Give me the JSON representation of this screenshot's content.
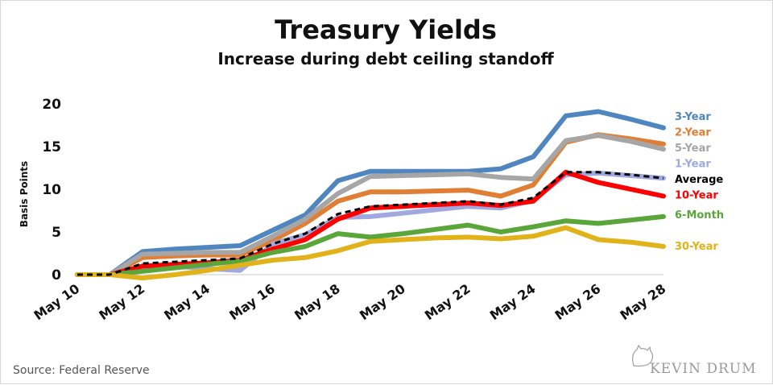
{
  "chart_data": {
    "type": "line",
    "title": "Treasury Yields",
    "subtitle": "Increase during debt ceiling standoff",
    "ylabel": "Basis Points",
    "xlabel": "",
    "ylim": [
      0,
      20
    ],
    "yticks": [
      0,
      5,
      10,
      15,
      20
    ],
    "x": [
      10,
      11,
      12,
      13,
      14,
      15,
      16,
      17,
      18,
      19,
      20,
      21,
      22,
      23,
      24,
      25,
      26,
      27,
      28
    ],
    "xtick_values": [
      10,
      12,
      14,
      16,
      18,
      20,
      22,
      24,
      26,
      28
    ],
    "xtick_labels": [
      "May 10",
      "May 12",
      "May 14",
      "May 16",
      "May 18",
      "May 20",
      "May 22",
      "May 24",
      "May 26",
      "May 28"
    ],
    "grid": false,
    "legend": "right, labels at line ends",
    "series": [
      {
        "name": "3-Year",
        "color": "#4f86c0",
        "dash": false,
        "values": [
          0,
          0,
          2.7,
          3.0,
          3.2,
          3.4,
          5.2,
          7.0,
          11.0,
          12.1,
          12.1,
          12.1,
          12.1,
          12.4,
          13.8,
          18.6,
          19.1,
          18.2,
          17.2
        ]
      },
      {
        "name": "2-Year",
        "color": "#e07f34",
        "dash": false,
        "values": [
          0,
          0,
          2.0,
          2.2,
          2.3,
          2.3,
          4.0,
          6.0,
          8.6,
          9.7,
          9.7,
          9.8,
          9.9,
          9.2,
          10.5,
          15.5,
          16.4,
          15.9,
          15.3
        ]
      },
      {
        "name": "5-Year",
        "color": "#a6a6a6",
        "dash": false,
        "values": [
          0,
          0,
          2.4,
          2.5,
          2.6,
          2.6,
          4.5,
          6.5,
          9.5,
          11.5,
          11.6,
          11.7,
          11.8,
          11.4,
          11.2,
          15.7,
          16.3,
          15.6,
          14.7
        ]
      },
      {
        "name": "1-Year",
        "color": "#a0a8e0",
        "dash": false,
        "values": [
          0,
          0,
          0.9,
          1.0,
          0.7,
          0.5,
          3.6,
          4.7,
          6.7,
          6.8,
          7.2,
          7.6,
          8.0,
          7.8,
          8.7,
          11.7,
          11.9,
          11.6,
          11.3
        ]
      },
      {
        "name": "10-Year",
        "color": "#ff0000",
        "dash": false,
        "values": [
          0,
          0,
          1.0,
          1.2,
          1.4,
          1.7,
          3.0,
          4.1,
          6.5,
          7.8,
          8.0,
          8.2,
          8.4,
          8.1,
          8.6,
          12.0,
          10.8,
          10.0,
          9.2
        ]
      },
      {
        "name": "6-Month",
        "color": "#5aa63a",
        "dash": false,
        "values": [
          0,
          0,
          0.4,
          0.8,
          1.2,
          1.6,
          2.6,
          3.3,
          4.8,
          4.4,
          4.8,
          5.3,
          5.8,
          5.0,
          5.6,
          6.3,
          6.0,
          6.4,
          6.8
        ]
      },
      {
        "name": "30-Year",
        "color": "#e2b21a",
        "dash": false,
        "values": [
          0,
          0,
          -0.4,
          0,
          0.5,
          1.1,
          1.7,
          2.0,
          2.8,
          3.9,
          4.1,
          4.3,
          4.4,
          4.2,
          4.5,
          5.5,
          4.1,
          3.8,
          3.3
        ]
      },
      {
        "name": "Average",
        "color": "#000000",
        "dash": true,
        "values": [
          0,
          0,
          1.3,
          1.5,
          1.7,
          1.9,
          3.6,
          4.8,
          7.1,
          8.0,
          8.2,
          8.4,
          8.6,
          8.2,
          9.0,
          12.0,
          12.0,
          11.7,
          11.3
        ]
      }
    ],
    "legend_order": [
      "3-Year",
      "2-Year",
      "5-Year",
      "1-Year",
      "Average",
      "10-Year",
      "6-Month",
      "30-Year"
    ]
  },
  "footer": {
    "source": "Source:  Federal Reserve",
    "brand": "KEVIN DRUM"
  }
}
